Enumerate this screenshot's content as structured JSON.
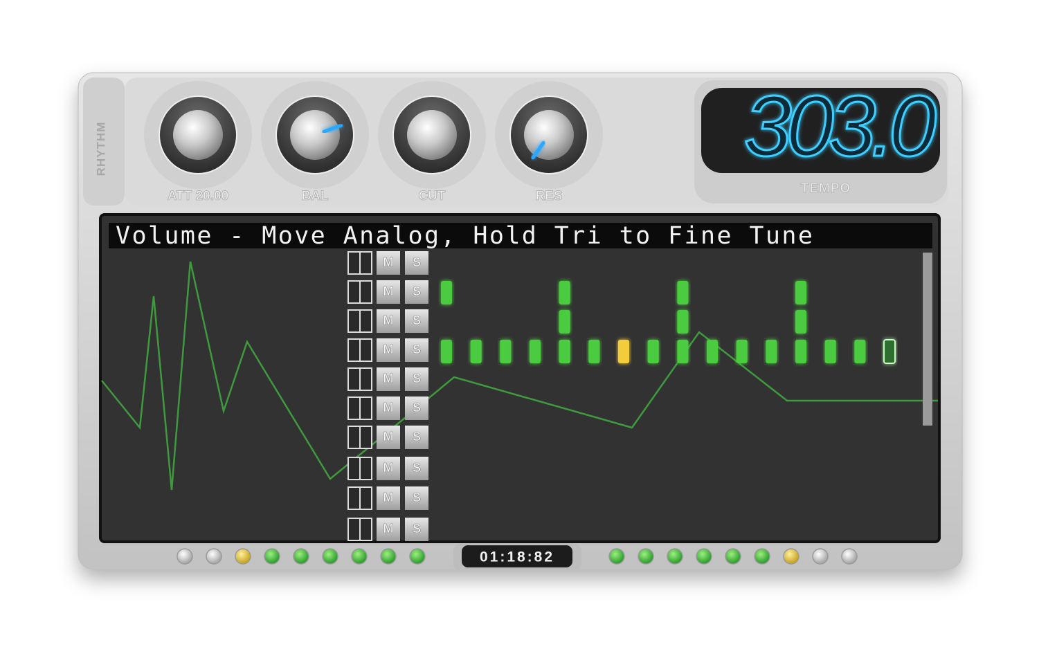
{
  "sidebar_label": "RHYTHM",
  "knobs": [
    {
      "label": "ATT 20.00"
    },
    {
      "label": "BAL"
    },
    {
      "label": "CUT"
    },
    {
      "label": "RES"
    }
  ],
  "tempo": {
    "value": "303.0",
    "label": "TEMPO"
  },
  "screen": {
    "status": "Volume - Move Analog, Hold Tri to Fine Tune",
    "tracks": [
      {
        "mute": "M",
        "solo": "S"
      },
      {
        "mute": "M",
        "solo": "S"
      },
      {
        "mute": "M",
        "solo": "S"
      },
      {
        "mute": "M",
        "solo": "S"
      },
      {
        "mute": "M",
        "solo": "S"
      },
      {
        "mute": "M",
        "solo": "S"
      },
      {
        "mute": "M",
        "solo": "S"
      },
      {
        "mute": "M",
        "solo": "S"
      },
      {
        "mute": "M",
        "solo": "S"
      },
      {
        "mute": "M",
        "solo": "S"
      }
    ]
  },
  "timer": "01:18:82"
}
